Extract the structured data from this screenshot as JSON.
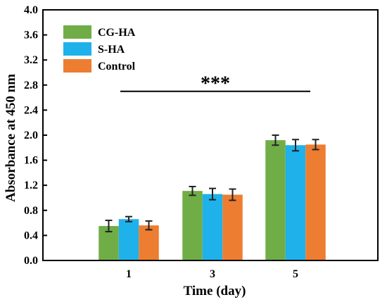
{
  "chart_data": {
    "type": "bar",
    "categories": [
      "1",
      "3",
      "5"
    ],
    "series": [
      {
        "name": "CG-HA",
        "color": "#70ad47",
        "values": [
          0.55,
          1.11,
          1.92
        ],
        "errors": [
          0.09,
          0.07,
          0.08
        ]
      },
      {
        "name": "S-HA",
        "color": "#1fb1ea",
        "values": [
          0.66,
          1.06,
          1.84
        ],
        "errors": [
          0.04,
          0.09,
          0.09
        ]
      },
      {
        "name": "Control",
        "color": "#ed7d31",
        "values": [
          0.56,
          1.05,
          1.85
        ],
        "errors": [
          0.07,
          0.09,
          0.08
        ]
      }
    ],
    "xlabel": "Time (day)",
    "ylabel": "Absorbance at 450 nm",
    "ylim": [
      0.0,
      4.0
    ],
    "yticks": [
      "0.0",
      "0.4",
      "0.8",
      "1.2",
      "1.6",
      "2.0",
      "2.4",
      "2.8",
      "3.2",
      "3.6",
      "4.0"
    ],
    "annotation": {
      "text": "***",
      "span_categories": [
        "1",
        "5"
      ],
      "y": 2.7
    },
    "legend_position": "top-left",
    "grid": false
  }
}
